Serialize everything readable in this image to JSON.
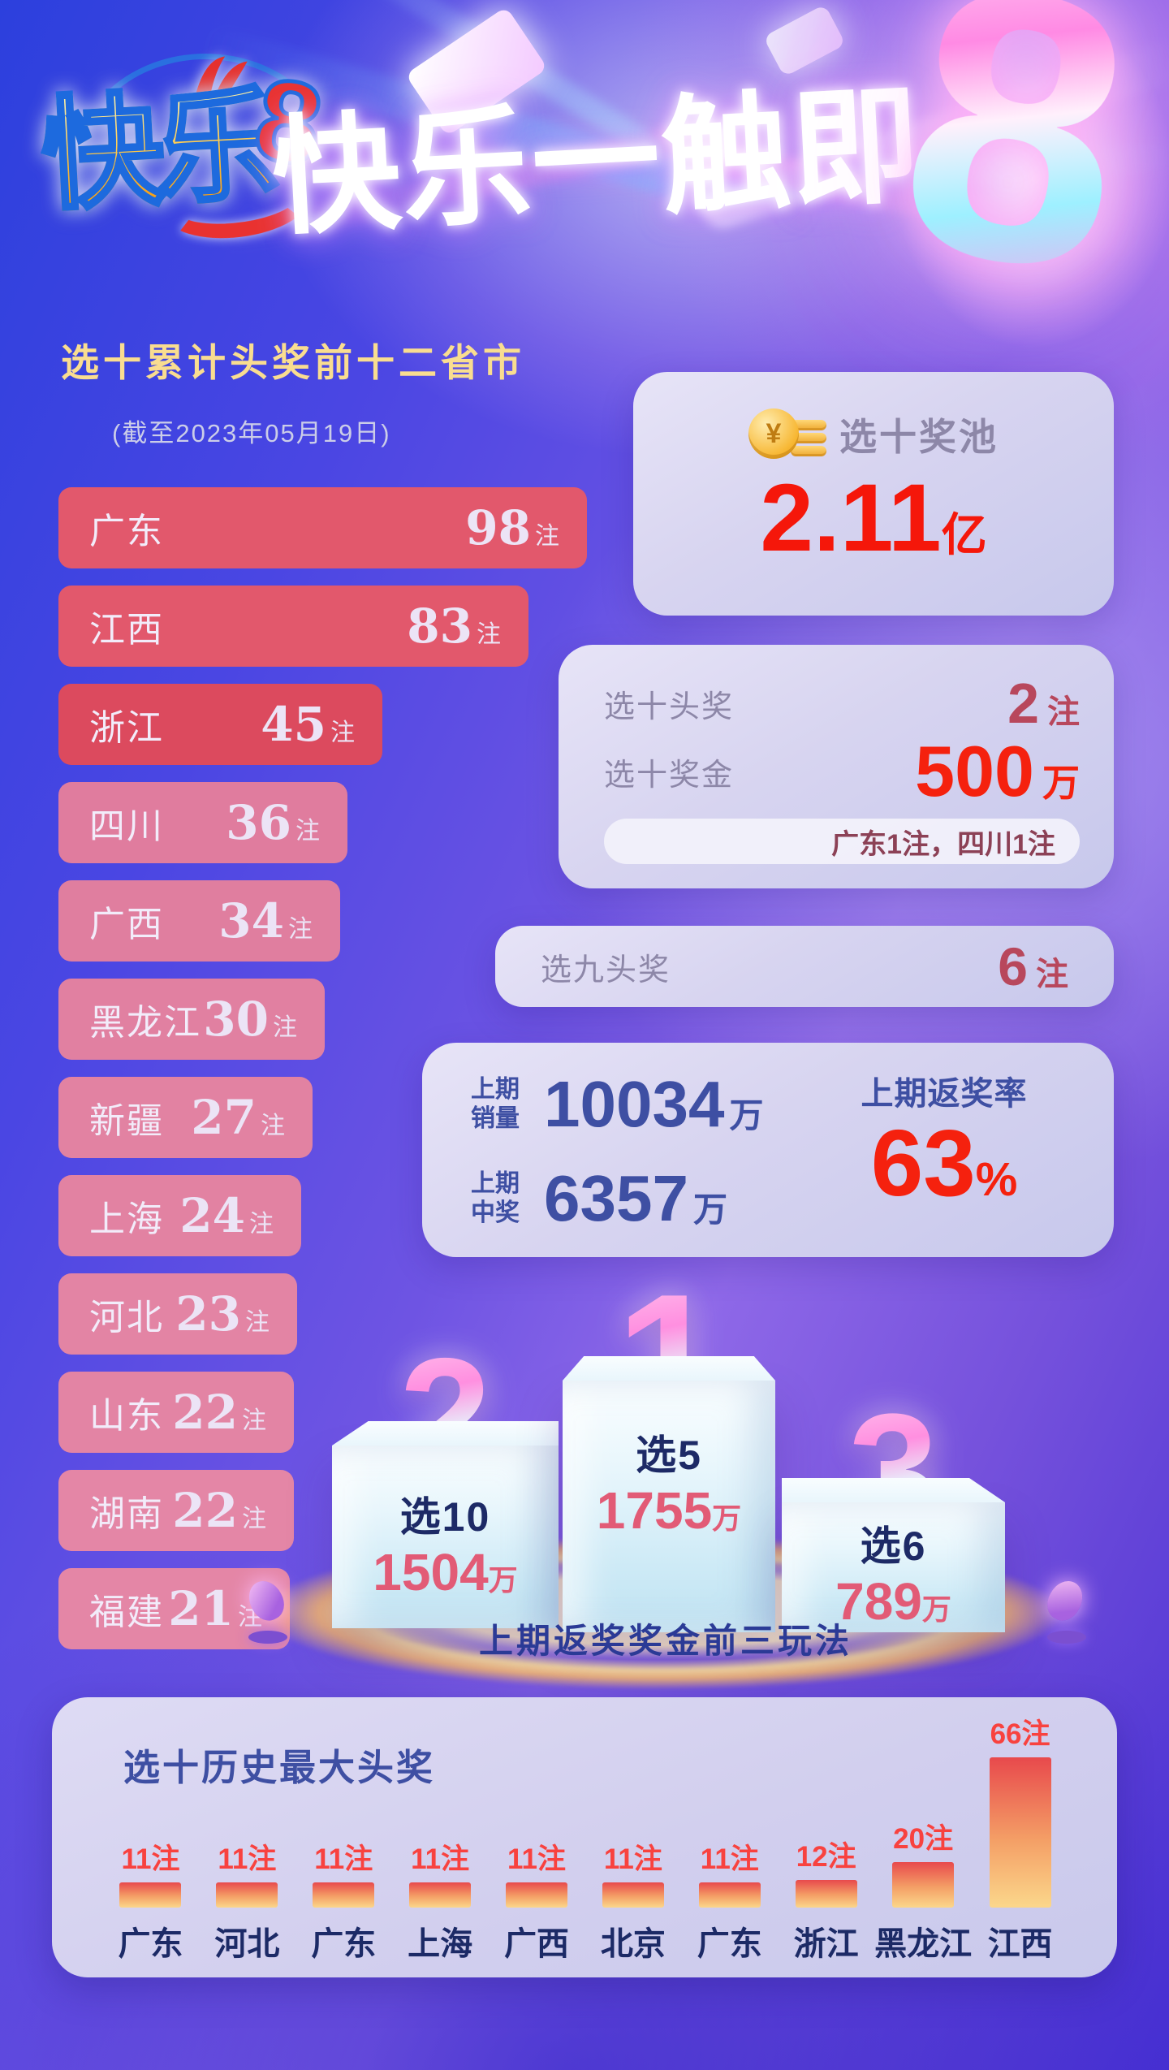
{
  "logo": {
    "text": "快乐",
    "number": "8"
  },
  "headline": {
    "text": "快乐一触即",
    "number": "8"
  },
  "pool_card": {
    "title": "选十奖池",
    "value": "2.11",
    "unit": "亿",
    "coin_symbol": "¥"
  },
  "prize_card": {
    "row1_label": "选十头奖",
    "row1_value": "2",
    "row1_unit": "注",
    "row2_label": "选十奖金",
    "row2_value": "500",
    "row2_unit": "万",
    "note": "广东1注，四川1注"
  },
  "nine_card": {
    "label": "选九头奖",
    "value": "6",
    "unit": "注"
  },
  "period_card": {
    "sales_label_1": "上期",
    "sales_label_2": "销量",
    "sales_value": "10034",
    "sales_unit": "万",
    "win_label_1": "上期",
    "win_label_2": "中奖",
    "win_value": "6357",
    "win_unit": "万",
    "rate_label": "上期返奖率",
    "rate_value": "63",
    "rate_unit": "%"
  },
  "podium": {
    "caption": "上期返奖奖金前三玩法",
    "items": [
      {
        "rank": "1",
        "game": "选5",
        "amount": "1755",
        "unit": "万"
      },
      {
        "rank": "2",
        "game": "选10",
        "amount": "1504",
        "unit": "万"
      },
      {
        "rank": "3",
        "game": "选6",
        "amount": "789",
        "unit": "万"
      }
    ]
  },
  "colors": {
    "accent_red": "#f5210e",
    "dark_red": "#b8475c",
    "navy": "#3e4fa3",
    "gold_title": "#f9dd90",
    "amount_pink": "#e25b76",
    "history_red": "#f8423f"
  },
  "chart_data": [
    {
      "type": "bar",
      "orientation": "horizontal",
      "title": "选十累计头奖前十二省市",
      "subtitle": "(截至2023年05月19日)",
      "unit": "注",
      "categories": [
        "广东",
        "江西",
        "浙江",
        "四川",
        "广西",
        "黑龙江",
        "新疆",
        "上海",
        "河北",
        "山东",
        "湖南",
        "福建"
      ],
      "values": [
        98,
        83,
        45,
        36,
        34,
        30,
        27,
        24,
        23,
        22,
        22,
        21
      ],
      "bar_colors": [
        "#e2586c",
        "#e2586c",
        "#dc4a5e",
        "#e07c9e",
        "#e07e9f",
        "#e180a1",
        "#e282a2",
        "#e282a2",
        "#e384a4",
        "#e384a4",
        "#e486a6",
        "#e486a6"
      ],
      "xlim": [
        0,
        98
      ],
      "grid": false
    },
    {
      "type": "bar",
      "orientation": "vertical",
      "title": "选十历史最大头奖",
      "unit": "注",
      "categories": [
        "广东",
        "河北",
        "广东",
        "上海",
        "广西",
        "北京",
        "广东",
        "浙江",
        "黑龙江",
        "江西"
      ],
      "values": [
        11,
        11,
        11,
        11,
        11,
        11,
        11,
        12,
        20,
        66
      ],
      "ylim": [
        0,
        66
      ],
      "grid": false
    },
    {
      "type": "bar",
      "title": "上期返奖奖金前三玩法",
      "unit": "万",
      "categories": [
        "选5",
        "选10",
        "选6"
      ],
      "values": [
        1755,
        1504,
        789
      ],
      "ranks": [
        1,
        2,
        3
      ]
    }
  ]
}
